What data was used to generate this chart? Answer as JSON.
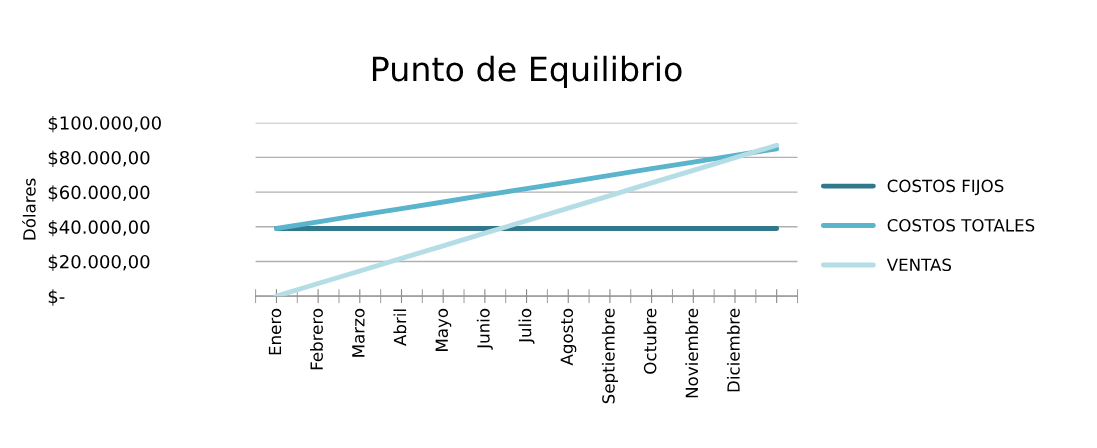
{
  "chart_data": {
    "type": "line",
    "title": "Punto de Equilibrio",
    "ylabel": "Dólares",
    "categories": [
      "Enero",
      "Febrero",
      "Marzo",
      "Abril",
      "Mayo",
      "Junio",
      "Julio",
      "Agosto",
      "Septiembre",
      "Octubre",
      "Noviembre",
      "Diciembre",
      null
    ],
    "series": [
      {
        "name": "COSTOS FIJOS",
        "color": "#31788a",
        "values": [
          39000,
          39000,
          39000,
          39000,
          39000,
          39000,
          39000,
          39000,
          39000,
          39000,
          39000,
          39000,
          39000
        ]
      },
      {
        "name": "COSTOS TOTALES",
        "color": "#5ab4cc",
        "values": [
          39000,
          42800,
          46700,
          50500,
          54300,
          58200,
          62000,
          65800,
          69700,
          73500,
          77300,
          81200,
          85000
        ]
      },
      {
        "name": "VENTAS",
        "color": "#b4dde6",
        "values": [
          0,
          7300,
          14500,
          21800,
          29000,
          36300,
          43500,
          50800,
          58000,
          65300,
          72500,
          79800,
          87000
        ]
      }
    ],
    "ylim": [
      0,
      100000
    ],
    "yticks": [
      {
        "value": 0,
        "label": "$-"
      },
      {
        "value": 20000,
        "label": "$20.000,00"
      },
      {
        "value": 40000,
        "label": "$40.000,00"
      },
      {
        "value": 60000,
        "label": "$60.000,00"
      },
      {
        "value": 80000,
        "label": "$80.000,00"
      },
      {
        "value": 100000,
        "label": "$100.000,00"
      }
    ],
    "grid": "y",
    "legend": "right",
    "marker": "none",
    "line_style": "solid"
  }
}
